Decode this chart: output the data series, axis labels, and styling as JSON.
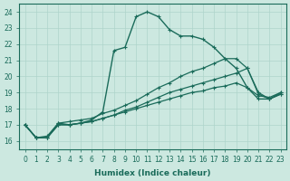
{
  "xlabel": "Humidex (Indice chaleur)",
  "xlim": [
    -0.5,
    23.5
  ],
  "ylim": [
    15.5,
    24.5
  ],
  "yticks": [
    16,
    17,
    18,
    19,
    20,
    21,
    22,
    23,
    24
  ],
  "xticks": [
    0,
    1,
    2,
    3,
    4,
    5,
    6,
    7,
    8,
    9,
    10,
    11,
    12,
    13,
    14,
    15,
    16,
    17,
    18,
    19,
    20,
    21,
    22,
    23
  ],
  "line_color": "#1a6b5a",
  "bg_color": "#cce8e0",
  "grid_color": "#aed4cb",
  "lines": [
    {
      "x": [
        0,
        1,
        2,
        3,
        4,
        5,
        6,
        7,
        8,
        9,
        10,
        11,
        12,
        13,
        14,
        15,
        16,
        17,
        18,
        19,
        20,
        21,
        22,
        23
      ],
      "y": [
        17.0,
        16.2,
        16.2,
        17.1,
        17.0,
        17.1,
        17.3,
        17.8,
        21.6,
        21.8,
        23.7,
        24.0,
        23.7,
        22.9,
        22.5,
        22.5,
        22.3,
        21.8,
        21.1,
        20.5,
        19.3,
        18.6,
        18.6,
        18.9
      ],
      "marker": "+",
      "linestyle": "-",
      "linewidth": 1.0
    },
    {
      "x": [
        0,
        1,
        2,
        3,
        4,
        5,
        6,
        7,
        8,
        9,
        10,
        11,
        12,
        13,
        14,
        15,
        16,
        17,
        18,
        19,
        20,
        21,
        22,
        23
      ],
      "y": [
        17.0,
        16.2,
        16.3,
        17.1,
        17.2,
        17.3,
        17.4,
        17.7,
        17.9,
        18.2,
        18.5,
        18.9,
        19.3,
        19.6,
        20.0,
        20.3,
        20.5,
        20.8,
        21.1,
        21.1,
        20.5,
        19.0,
        18.6,
        19.0
      ],
      "marker": "+",
      "linestyle": "-",
      "linewidth": 0.9
    },
    {
      "x": [
        0,
        1,
        2,
        3,
        4,
        5,
        6,
        7,
        8,
        9,
        10,
        11,
        12,
        13,
        14,
        15,
        16,
        17,
        18,
        19,
        20,
        21,
        22,
        23
      ],
      "y": [
        17.0,
        16.2,
        16.2,
        17.0,
        17.0,
        17.1,
        17.2,
        17.4,
        17.6,
        17.9,
        18.1,
        18.4,
        18.7,
        19.0,
        19.2,
        19.4,
        19.6,
        19.8,
        20.0,
        20.2,
        20.5,
        18.9,
        18.6,
        18.9
      ],
      "marker": "+",
      "linestyle": "-",
      "linewidth": 0.9
    },
    {
      "x": [
        0,
        1,
        2,
        3,
        4,
        5,
        6,
        7,
        8,
        9,
        10,
        11,
        12,
        13,
        14,
        15,
        16,
        17,
        18,
        19,
        20,
        21,
        22,
        23
      ],
      "y": [
        17.0,
        16.2,
        16.2,
        17.0,
        17.0,
        17.1,
        17.2,
        17.4,
        17.6,
        17.8,
        18.0,
        18.2,
        18.4,
        18.6,
        18.8,
        19.0,
        19.1,
        19.3,
        19.4,
        19.6,
        19.3,
        18.8,
        18.7,
        19.0
      ],
      "marker": "+",
      "linestyle": "-",
      "linewidth": 0.9
    }
  ]
}
